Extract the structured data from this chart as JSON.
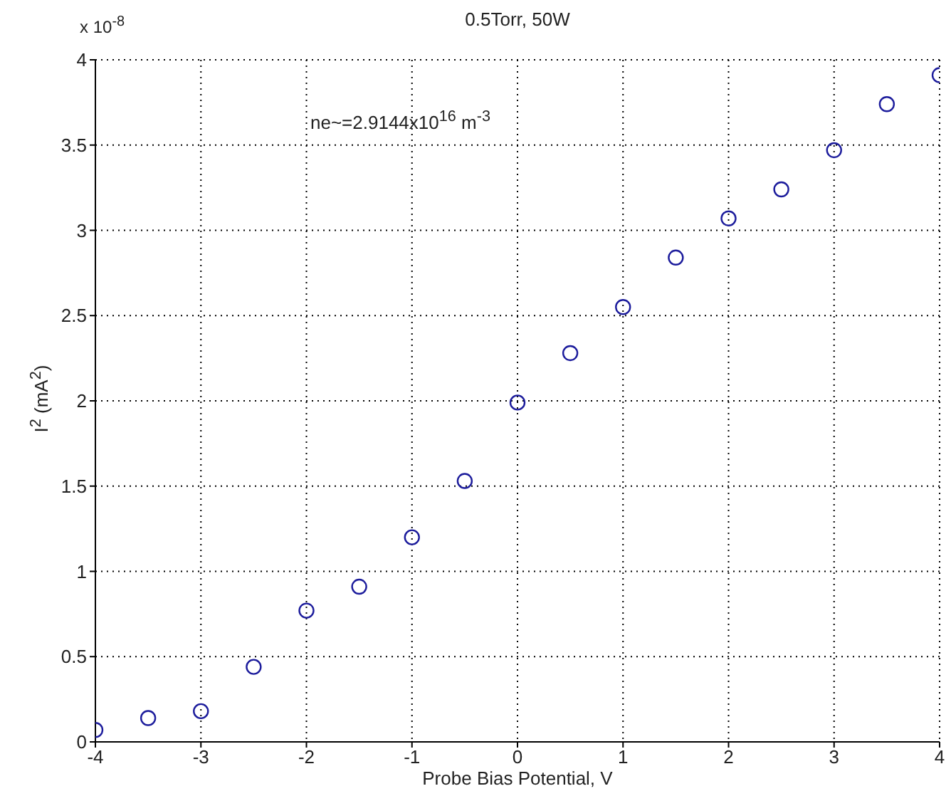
{
  "chart_data": {
    "type": "scatter",
    "title": "0.5Torr, 50W",
    "xlabel": "Probe Bias Potential, V",
    "ylabel": "I$^{2}$ (mA$^{2}$)",
    "annotations": [
      "x 10$^{-8}$",
      "ne~=2.9144x10$^{16}$ m$^{-3}$"
    ],
    "x": [
      -4,
      -3.5,
      -3,
      -2.5,
      -2,
      -1.5,
      -1,
      -0.5,
      0,
      0.5,
      1,
      1.5,
      2,
      2.5,
      3,
      3.5,
      4
    ],
    "series": [
      {
        "color": "#1c1c9c",
        "values": [
          0.07,
          0.14,
          0.18,
          0.44,
          0.77,
          0.91,
          1.2,
          1.53,
          1.99,
          2.28,
          2.55,
          2.84,
          3.07,
          3.24,
          3.47,
          3.74,
          3.91
        ]
      }
    ],
    "xlim": [
      -4,
      4
    ],
    "xticks": [
      -4,
      -3,
      -2,
      -1,
      0,
      1,
      2,
      3,
      4
    ],
    "ylim": [
      0,
      4
    ],
    "yticks": [
      0,
      0.5,
      1,
      1.5,
      2,
      2.5,
      3,
      3.5,
      4
    ],
    "grid": true,
    "marker": "circle"
  }
}
